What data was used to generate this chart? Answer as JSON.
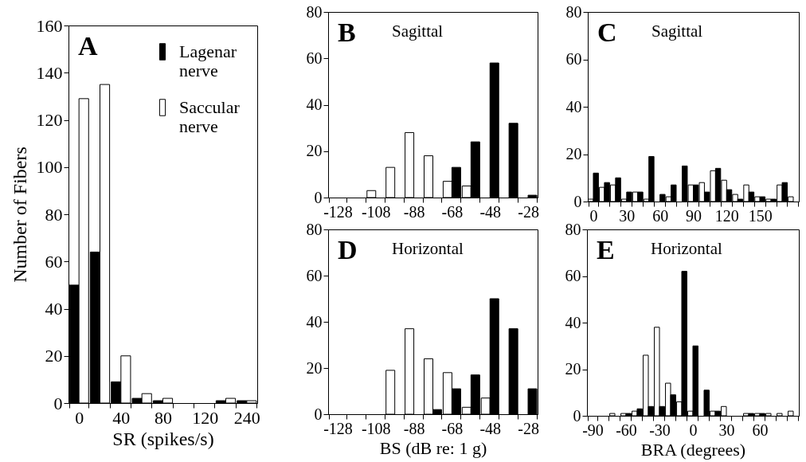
{
  "chart_data": [
    {
      "type": "bar",
      "title": "A",
      "xlabel": "SR (spikes/s)",
      "ylabel": "Number of Fibers",
      "categories": [
        "0",
        null,
        "40",
        null,
        "80",
        null,
        "120",
        null,
        "240"
      ],
      "series": [
        {
          "name": "Lagenar nerve",
          "color": "#000000",
          "values": [
            50,
            64,
            9,
            2,
            1,
            null,
            null,
            1,
            1
          ]
        },
        {
          "name": "Saccular nerve",
          "color": "#ffffff",
          "values": [
            129,
            135,
            20,
            4,
            2,
            null,
            null,
            2,
            1
          ]
        }
      ],
      "ylim": [
        0,
        160
      ],
      "yticks": [
        0,
        20,
        40,
        60,
        80,
        100,
        120,
        140,
        160
      ],
      "legend": "top right"
    },
    {
      "type": "bar",
      "title": "B",
      "subtitle": "Sagittal",
      "categories": [
        "-128",
        null,
        "-108",
        null,
        "-88",
        null,
        "-68",
        null,
        "-48",
        null,
        "-28"
      ],
      "series": [
        {
          "color": "#ffffff",
          "values": [
            null,
            null,
            3,
            13,
            28,
            18,
            7,
            5,
            null,
            null,
            null
          ]
        },
        {
          "color": "#000000",
          "values": [
            null,
            null,
            null,
            null,
            null,
            null,
            13,
            24,
            58,
            32,
            1
          ]
        }
      ],
      "ylim": [
        0,
        80
      ],
      "yticks": [
        0,
        20,
        40,
        60,
        80
      ]
    },
    {
      "type": "bar",
      "title": "C",
      "subtitle": "Sagittal",
      "categories": [
        "0",
        null,
        null,
        "30",
        null,
        null,
        "60",
        null,
        null,
        "90",
        null,
        null,
        "120",
        null,
        null,
        "150",
        null,
        null,
        null
      ],
      "series": [
        {
          "color": "#ffffff",
          "values": [
            1,
            6,
            7,
            1,
            4,
            1,
            null,
            2,
            null,
            7,
            8,
            13,
            9,
            3,
            7,
            2,
            1,
            7,
            2
          ]
        },
        {
          "color": "#000000",
          "values": [
            12,
            8,
            10,
            4,
            4,
            19,
            3,
            7,
            15,
            7,
            4,
            14,
            5,
            1,
            4,
            2,
            1,
            8,
            null
          ]
        }
      ],
      "ylim": [
        0,
        80
      ],
      "yticks": [
        0,
        20,
        40,
        60,
        80
      ]
    },
    {
      "type": "bar",
      "title": "D",
      "subtitle": "Horizontal",
      "xlabel": "BS (dB re: 1 g)",
      "categories": [
        "-128",
        null,
        "-108",
        null,
        "-88",
        null,
        "-68",
        null,
        "-48",
        null,
        "-28"
      ],
      "series": [
        {
          "color": "#ffffff",
          "values": [
            null,
            null,
            null,
            19,
            37,
            24,
            18,
            3,
            7,
            null,
            null
          ]
        },
        {
          "color": "#000000",
          "values": [
            null,
            null,
            null,
            null,
            null,
            2,
            11,
            17,
            50,
            37,
            11
          ]
        }
      ],
      "ylim": [
        0,
        80
      ],
      "yticks": [
        0,
        20,
        40,
        60,
        80
      ]
    },
    {
      "type": "bar",
      "title": "E",
      "subtitle": "Horizontal",
      "xlabel": "BRA (degrees)",
      "categories": [
        "-90",
        null,
        null,
        "-60",
        null,
        null,
        "-30",
        null,
        null,
        "0",
        null,
        null,
        "30",
        null,
        null,
        "60",
        null,
        null,
        null
      ],
      "series": [
        {
          "color": "#ffffff",
          "values": [
            null,
            null,
            1,
            1,
            2,
            26,
            38,
            14,
            6,
            2,
            null,
            2,
            4,
            null,
            1,
            1,
            1,
            1,
            2
          ]
        },
        {
          "color": "#000000",
          "values": [
            null,
            null,
            null,
            1,
            3,
            4,
            4,
            9,
            62,
            30,
            11,
            2,
            null,
            null,
            1,
            1,
            null,
            null,
            null
          ]
        }
      ],
      "ylim": [
        0,
        80
      ],
      "yticks": [
        0,
        20,
        40,
        60,
        80
      ]
    }
  ]
}
